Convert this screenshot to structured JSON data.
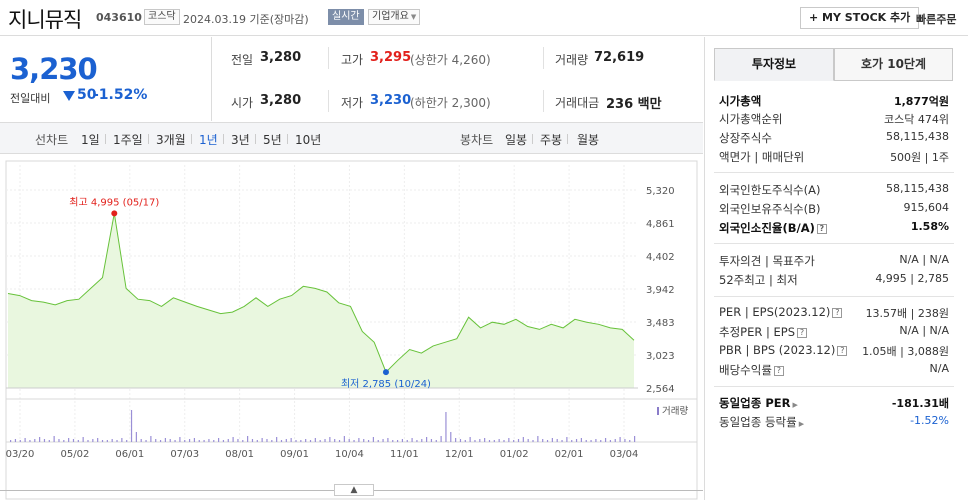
{
  "header": {
    "name": "지니뮤직",
    "code": "043610",
    "market": "코스닥",
    "date": "2024.03.19",
    "basis": "기준(장마감)",
    "live": "실시간",
    "company_info": "기업개요",
    "mystock": "+ MY STOCK 추가",
    "quick_order": "빠른주문"
  },
  "quote": {
    "price": "3,230",
    "change_label": "전일대비",
    "change": "50",
    "change_pct": "-1.52%",
    "prev_close_label": "전일",
    "prev_close": "3,280",
    "open_label": "시가",
    "open": "3,280",
    "high_label": "고가",
    "high": "3,295",
    "upper_limit": "(상한가 4,260)",
    "low_label": "저가",
    "low": "3,230",
    "lower_limit": "(하한가 2,300)",
    "volume_label": "거래량",
    "volume": "72,619",
    "amount_label": "거래대금",
    "amount": "236 백만"
  },
  "period_bar": {
    "line_label": "선차트",
    "periods": [
      "1일",
      "1주일",
      "3개월",
      "1년",
      "3년",
      "5년",
      "10년"
    ],
    "selected": "1년",
    "candle_label": "봉차트",
    "candles": [
      "일봉",
      "주봉",
      "월봉"
    ]
  },
  "chart_data": {
    "type": "area",
    "ylim": [
      2564,
      5320
    ],
    "yticks": [
      "5,320",
      "4,861",
      "4,402",
      "3,942",
      "3,483",
      "3,023",
      "2,564"
    ],
    "xticks": [
      "03/20",
      "05/02",
      "06/01",
      "07/03",
      "08/01",
      "09/01",
      "10/04",
      "11/01",
      "12/01",
      "01/02",
      "02/01",
      "03/04"
    ],
    "x": [
      "03/20",
      "03/27",
      "04/03",
      "04/10",
      "04/17",
      "04/24",
      "05/01",
      "05/08",
      "05/15",
      "05/17",
      "05/22",
      "05/29",
      "06/05",
      "06/12",
      "06/19",
      "06/26",
      "07/03",
      "07/10",
      "07/17",
      "07/24",
      "07/31",
      "08/07",
      "08/14",
      "08/21",
      "08/28",
      "09/04",
      "09/11",
      "09/18",
      "09/25",
      "10/02",
      "10/09",
      "10/16",
      "10/24",
      "10/31",
      "11/07",
      "11/14",
      "11/21",
      "11/28",
      "12/05",
      "12/12",
      "12/19",
      "12/26",
      "01/02",
      "01/09",
      "01/16",
      "01/23",
      "01/30",
      "02/06",
      "02/13",
      "02/20",
      "02/27",
      "03/05",
      "03/12",
      "03/19"
    ],
    "values": [
      3880,
      3850,
      3780,
      3760,
      3720,
      3780,
      3800,
      3950,
      4100,
      4995,
      3950,
      3800,
      3780,
      3700,
      3820,
      3760,
      3700,
      3650,
      3600,
      3620,
      3700,
      3820,
      3700,
      3800,
      3850,
      3980,
      3950,
      3900,
      3750,
      3700,
      3350,
      3200,
      2785,
      2950,
      3100,
      3050,
      3150,
      3200,
      3250,
      3550,
      3400,
      3480,
      3450,
      3520,
      3420,
      3380,
      3450,
      3400,
      3520,
      3480,
      3450,
      3400,
      3380,
      3230
    ],
    "max_label": "최고 4,995 (05/17)",
    "min_label": "최저 2,785 (10/24)",
    "volume_legend": "거래량",
    "volume_spikes_at": [
      "05/17",
      "12/05"
    ]
  },
  "right_panel": {
    "tabs": [
      "투자정보",
      "호가 10단계"
    ],
    "rows": [
      {
        "l": "시가총액",
        "r": "1,877억원",
        "bold": true
      },
      {
        "l": "시가총액순위",
        "r": "코스닥 474위"
      },
      {
        "l": "상장주식수",
        "r": "58,115,438"
      },
      {
        "l": "액면가 | 매매단위",
        "r": "500원 | 1주"
      },
      {
        "l": "외국인한도주식수(A)",
        "r": "58,115,438"
      },
      {
        "l": "외국인보유주식수(B)",
        "r": "915,604"
      },
      {
        "l": "외국인소진율(B/A)",
        "r": "1.58%",
        "bold": true
      },
      {
        "l": "투자의견 | 목표주가",
        "r": "N/A | N/A"
      },
      {
        "l": "52주최고 | 최저",
        "r": "4,995 | 2,785"
      },
      {
        "l": "PER | EPS(2023.12)",
        "r": "13.57배 | 238원"
      },
      {
        "l": "추정PER | EPS",
        "r": "N/A | N/A"
      },
      {
        "l": "PBR | BPS (2023.12)",
        "r": "1.05배 | 3,088원"
      },
      {
        "l": "배당수익률",
        "r": "N/A"
      },
      {
        "l": "동일업종 PER",
        "r": "-181.31배",
        "bold": true
      },
      {
        "l": "동일업종 등락률",
        "r": "-1.52%",
        "blue": true
      }
    ]
  },
  "colors": {
    "up": "#e2211c",
    "down": "#1b61d1",
    "area_line": "#67c23a",
    "area_fill": "#e9f7df"
  }
}
